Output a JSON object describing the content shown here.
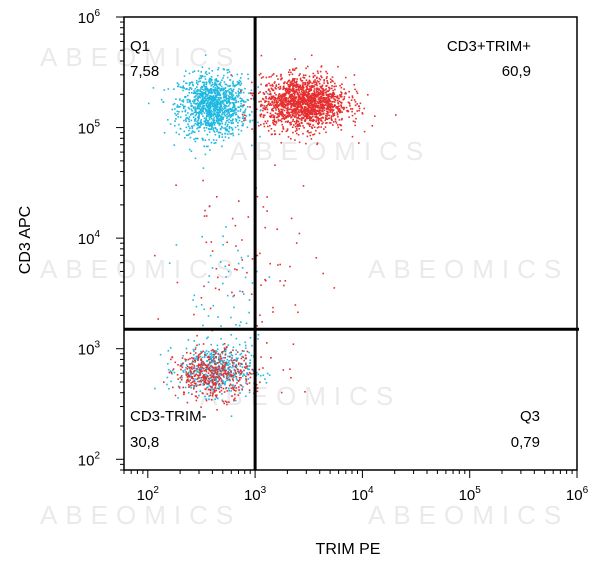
{
  "chart_data": {
    "type": "scatter",
    "title": "",
    "xlabel": "TRIM PE",
    "ylabel": "CD3 APC",
    "xscale": "log",
    "yscale": "log",
    "xlim": [
      60,
      1000000
    ],
    "ylim": [
      80,
      1000000
    ],
    "x_ticks": [
      {
        "base": "10",
        "exp": "2",
        "value": 100
      },
      {
        "base": "10",
        "exp": "3",
        "value": 1000
      },
      {
        "base": "10",
        "exp": "4",
        "value": 10000
      },
      {
        "base": "10",
        "exp": "5",
        "value": 100000
      },
      {
        "base": "10",
        "exp": "6",
        "value": 1000000
      }
    ],
    "y_ticks": [
      {
        "base": "10",
        "exp": "2",
        "value": 100
      },
      {
        "base": "10",
        "exp": "3",
        "value": 1000
      },
      {
        "base": "10",
        "exp": "4",
        "value": 10000
      },
      {
        "base": "10",
        "exp": "5",
        "value": 100000
      },
      {
        "base": "10",
        "exp": "6",
        "value": 1000000
      }
    ],
    "gates": {
      "x_threshold": 1000,
      "y_threshold": 1500
    },
    "quadrants": [
      {
        "id": "q1",
        "name": "Q1",
        "percent": "7,58",
        "position": "top-left"
      },
      {
        "id": "q2",
        "name": "CD3+TRIM+",
        "percent": "60,9",
        "position": "top-right"
      },
      {
        "id": "q3",
        "name": "Q3",
        "percent": "0,79",
        "position": "bottom-right"
      },
      {
        "id": "q4",
        "name": "CD3-TRIM-",
        "percent": "30,8",
        "position": "bottom-left"
      }
    ],
    "populations": [
      {
        "name": "isotype",
        "color": "#1fb8e0",
        "clusters": [
          {
            "cx": 400,
            "cy": 160000,
            "sx": 0.16,
            "sy": 0.14,
            "n": 1200
          },
          {
            "cx": 420,
            "cy": 650,
            "sx": 0.17,
            "sy": 0.11,
            "n": 500
          },
          {
            "cx": 500,
            "cy": 3500,
            "sx": 0.25,
            "sy": 0.45,
            "n": 60
          }
        ]
      },
      {
        "name": "stained",
        "color": "#e62e2e",
        "clusters": [
          {
            "cx": 2800,
            "cy": 170000,
            "sx": 0.2,
            "sy": 0.12,
            "n": 1700
          },
          {
            "cx": 400,
            "cy": 600,
            "sx": 0.18,
            "sy": 0.11,
            "n": 450
          },
          {
            "cx": 800,
            "cy": 5000,
            "sx": 0.35,
            "sy": 0.5,
            "n": 90
          }
        ]
      }
    ]
  },
  "watermark": "ABEOMICS"
}
